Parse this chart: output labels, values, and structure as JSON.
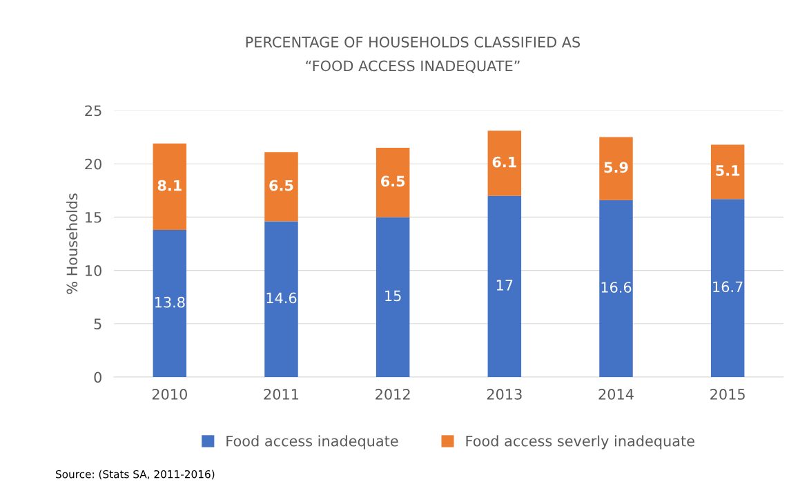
{
  "chart_data": {
    "type": "bar",
    "stacked": true,
    "title": "PERCENTAGE OF HOUSEHOLDS CLASSIFIED AS\n“FOOD ACCESS INADEQUATE”",
    "ylabel": "% Households",
    "categories": [
      "2010",
      "2011",
      "2012",
      "2013",
      "2014",
      "2015"
    ],
    "series": [
      {
        "name": "Food access inadequate",
        "color": "#4472c4",
        "values": [
          13.8,
          14.6,
          15,
          17,
          16.6,
          16.7
        ]
      },
      {
        "name": "Food access severly inadequate",
        "color": "#ed7d31",
        "values": [
          8.1,
          6.5,
          6.5,
          6.1,
          5.9,
          5.1
        ]
      }
    ],
    "ylim": [
      0,
      25
    ],
    "yticks": [
      0,
      5,
      10,
      15,
      20,
      25
    ],
    "grid": "y",
    "legend": "bottom",
    "data_labels": true,
    "annotations": [
      "Source: (Stats SA, 2011-2016)"
    ]
  }
}
